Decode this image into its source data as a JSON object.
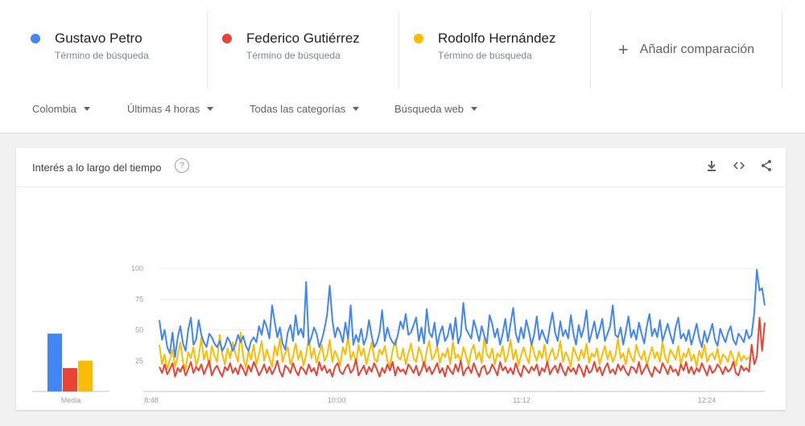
{
  "terms": [
    {
      "name": "Gustavo Petro",
      "subtitle": "Término de búsqueda",
      "color": "#4285f4"
    },
    {
      "name": "Federico Gutiérrez",
      "subtitle": "Término de búsqueda",
      "color": "#ea4335"
    },
    {
      "name": "Rodolfo Hernández",
      "subtitle": "Término de búsqueda",
      "color": "#fbbc04"
    }
  ],
  "add_comparison": {
    "icon": "plus-icon",
    "label": "Añadir comparación"
  },
  "filters": [
    {
      "label": "Colombia"
    },
    {
      "label": "Últimas 4 horas"
    },
    {
      "label": "Todas las categorías"
    },
    {
      "label": "Búsqueda web"
    }
  ],
  "card": {
    "title": "Interés a lo largo del tiempo",
    "help_icon": "help-icon",
    "actions": [
      "download-icon",
      "embed-icon",
      "share-icon"
    ]
  },
  "chart_data": {
    "type": "line",
    "x_ticks": [
      "8:48",
      "10:00",
      "11:12",
      "12:24"
    ],
    "y_ticks": [
      25,
      50,
      75,
      100
    ],
    "ylim": [
      0,
      100
    ],
    "grid": true,
    "average": {
      "label": "Media",
      "values": [
        47,
        19,
        25
      ]
    },
    "series": [
      {
        "name": "Gustavo Petro",
        "color": "#4285f4",
        "values": [
          58,
          42,
          50,
          36,
          31,
          48,
          28,
          44,
          53,
          39,
          33,
          50,
          60,
          38,
          42,
          58,
          46,
          40,
          36,
          47,
          44,
          39,
          36,
          41,
          33,
          37,
          44,
          40,
          33,
          38,
          46,
          40,
          45,
          37,
          33,
          41,
          44,
          40,
          53,
          46,
          58,
          52,
          43,
          70,
          57,
          44,
          52,
          39,
          34,
          48,
          54,
          41,
          62,
          46,
          51,
          44,
          89,
          38,
          44,
          52,
          47,
          36,
          42,
          51,
          62,
          86,
          58,
          44,
          52,
          48,
          40,
          56,
          43,
          70,
          38,
          46,
          40,
          51,
          38,
          44,
          58,
          45,
          36,
          40,
          48,
          66,
          41,
          52,
          44,
          40,
          38,
          46,
          57,
          51,
          63,
          46,
          48,
          54,
          60,
          41,
          52,
          39,
          67,
          48,
          44,
          56,
          37,
          47,
          53,
          41,
          45,
          55,
          42,
          60,
          39,
          46,
          72,
          51,
          47,
          43,
          58,
          50,
          41,
          53,
          45,
          39,
          62,
          55,
          44,
          51,
          38,
          47,
          59,
          41,
          55,
          68,
          47,
          40,
          52,
          43,
          58,
          49,
          38,
          46,
          61,
          42,
          50,
          44,
          39,
          53,
          64,
          48,
          41,
          57,
          45,
          50,
          43,
          62,
          47,
          38,
          54,
          44,
          52,
          66,
          40,
          48,
          57,
          43,
          50,
          59,
          41,
          47,
          53,
          70,
          46,
          44,
          52,
          38,
          49,
          61,
          44,
          50,
          42,
          56,
          47,
          39,
          53,
          63,
          45,
          51,
          44,
          58,
          41,
          48,
          55,
          46,
          39,
          52,
          60,
          43,
          47,
          41,
          50,
          38,
          46,
          55,
          43,
          36,
          49,
          40,
          47,
          55,
          42,
          37,
          51,
          45,
          40,
          48,
          53,
          42,
          38,
          47,
          44,
          40,
          50,
          43,
          46,
          64,
          99,
          82,
          84,
          70
        ]
      },
      {
        "name": "Federico Gutiérrez",
        "color": "#ea4335",
        "values": [
          20,
          15,
          22,
          14,
          18,
          23,
          12,
          19,
          16,
          21,
          13,
          18,
          24,
          15,
          20,
          17,
          22,
          14,
          19,
          25,
          13,
          18,
          21,
          16,
          12,
          20,
          17,
          23,
          15,
          19,
          14,
          22,
          18,
          13,
          21,
          16,
          24,
          19,
          13,
          17,
          22,
          15,
          20,
          14,
          18,
          25,
          16,
          12,
          21,
          19,
          15,
          23,
          17,
          13,
          20,
          18,
          14,
          22,
          16,
          19,
          13,
          24,
          17,
          21,
          15,
          18,
          12,
          20,
          23,
          16,
          14,
          19,
          22,
          15,
          18,
          26,
          13,
          17,
          21,
          14,
          20,
          16,
          23,
          18,
          12,
          19,
          15,
          22,
          17,
          24,
          13,
          20,
          16,
          18,
          14,
          22,
          19,
          15,
          21,
          13,
          17,
          24,
          16,
          20,
          14,
          18,
          23,
          15,
          19,
          12,
          21,
          17,
          14,
          22,
          16,
          25,
          13,
          18,
          20,
          15,
          23,
          17,
          12,
          19,
          21,
          14,
          16,
          22,
          18,
          13,
          24,
          17,
          20,
          15,
          19,
          14,
          23,
          16,
          12,
          21,
          18,
          15,
          20,
          17,
          22,
          13,
          19,
          16,
          24,
          14,
          18,
          21,
          15,
          23,
          17,
          13,
          20,
          16,
          19,
          14,
          22,
          18,
          12,
          21,
          15,
          17,
          24,
          16,
          20,
          13,
          19,
          23,
          15,
          18,
          14,
          22,
          17,
          21,
          16,
          13,
          20,
          19,
          15,
          24,
          14,
          18,
          22,
          16,
          12,
          20,
          17,
          15,
          23,
          19,
          14,
          21,
          16,
          18,
          13,
          22,
          17,
          24,
          15,
          20,
          14,
          19,
          16,
          23,
          18,
          13,
          21,
          15,
          17,
          22,
          19,
          14,
          20,
          16,
          18,
          24,
          15,
          13,
          21,
          17,
          19,
          16,
          38,
          22,
          28,
          60,
          33,
          56
        ]
      },
      {
        "name": "Rodolfo Hernández",
        "color": "#fbbc04",
        "values": [
          38,
          22,
          30,
          18,
          26,
          34,
          20,
          29,
          40,
          24,
          18,
          32,
          27,
          36,
          21,
          28,
          44,
          26,
          33,
          20,
          37,
          29,
          24,
          46,
          30,
          22,
          35,
          27,
          40,
          31,
          24,
          48,
          28,
          19,
          33,
          26,
          38,
          22,
          30,
          41,
          25,
          34,
          27,
          20,
          37,
          29,
          43,
          24,
          31,
          36,
          22,
          28,
          39,
          26,
          33,
          21,
          30,
          44,
          27,
          35,
          23,
          31,
          38,
          25,
          29,
          42,
          24,
          33,
          28,
          21,
          36,
          30,
          45,
          26,
          32,
          23,
          38,
          29,
          35,
          22,
          31,
          40,
          27,
          24,
          34,
          30,
          37,
          25,
          21,
          33,
          42,
          28,
          26,
          35,
          22,
          31,
          39,
          27,
          24,
          36,
          30,
          20,
          33,
          41,
          26,
          29,
          37,
          23,
          31,
          28,
          35,
          22,
          40,
          27,
          30,
          24,
          36,
          29,
          21,
          33,
          38,
          26,
          32,
          23,
          44,
          30,
          27,
          35,
          22,
          31,
          28,
          37,
          24,
          30,
          42,
          26,
          34,
          21,
          29,
          36,
          28,
          23,
          40,
          31,
          25,
          33,
          27,
          38,
          22,
          30,
          35,
          26,
          29,
          41,
          24,
          32,
          28,
          20,
          36,
          30,
          25,
          34,
          27,
          39,
          23,
          31,
          28,
          35,
          22,
          30,
          37,
          26,
          33,
          24,
          29,
          43,
          27,
          31,
          22,
          35,
          28,
          24,
          38,
          30,
          26,
          33,
          21,
          29,
          36,
          27,
          32,
          24,
          40,
          28,
          23,
          34,
          30,
          26,
          37,
          22,
          31,
          28,
          35,
          25,
          30,
          20,
          33,
          27,
          38,
          24,
          29,
          31,
          26,
          35,
          22,
          30,
          28,
          24,
          33,
          27,
          21,
          32,
          25,
          29,
          26,
          28
        ]
      }
    ]
  }
}
